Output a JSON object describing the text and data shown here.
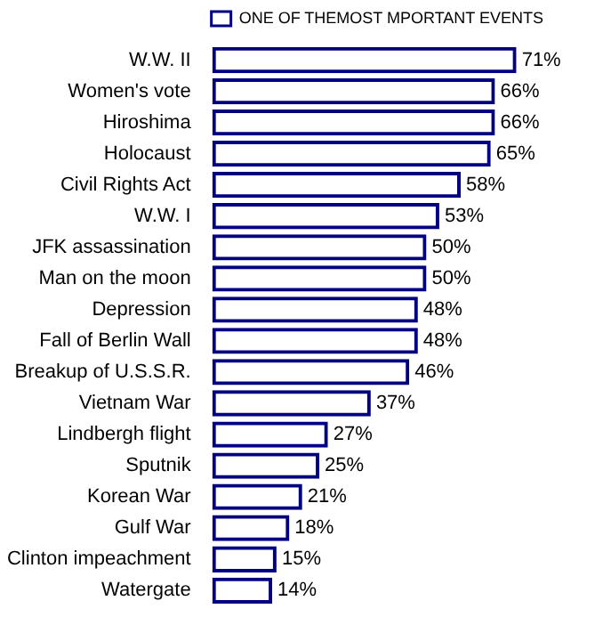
{
  "chart_data": {
    "type": "bar",
    "orientation": "horizontal",
    "legend": "top right",
    "categories": [
      "W.W. II",
      "Women's vote",
      "Hiroshima",
      "Holocaust",
      "Civil Rights Act",
      "W.W. I",
      "JFK assassination",
      "Man on the moon",
      "Depression",
      "Fall of Berlin Wall",
      "Breakup of U.S.S.R.",
      "Vietnam War",
      "Lindbergh flight",
      "Sputnik",
      "Korean War",
      "Gulf War",
      "Clinton impeachment",
      "Watergate"
    ],
    "series": [
      {
        "name": "ONE OF THEMOST MPORTANT EVENTS",
        "color": "#000080",
        "values": [
          71,
          66,
          66,
          65,
          58,
          53,
          50,
          50,
          48,
          48,
          46,
          37,
          27,
          25,
          21,
          18,
          15,
          14
        ],
        "value_labels": [
          "71%",
          "66%",
          "66%",
          "65%",
          "58%",
          "53%",
          "50%",
          "50%",
          "48%",
          "48%",
          "46%",
          "37%",
          "27%",
          "25%",
          "21%",
          "18%",
          "15%",
          "14%"
        ]
      }
    ]
  }
}
